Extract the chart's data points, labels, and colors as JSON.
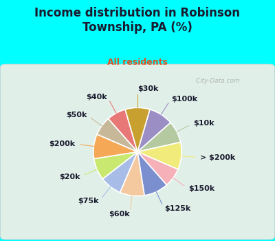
{
  "title": "Income distribution in Robinson\nTownship, PA (%)",
  "subtitle": "All residents",
  "bg_cyan": "#00FFFF",
  "chart_bg_top": "#f0f8f0",
  "chart_bg_bottom": "#c8ecd0",
  "labels": [
    "$100k",
    "$10k",
    "> $200k",
    "$150k",
    "$125k",
    "$60k",
    "$75k",
    "$20k",
    "$200k",
    "$50k",
    "$40k",
    "$30k"
  ],
  "sizes": [
    9,
    8,
    10,
    7,
    9,
    9,
    8,
    8,
    9,
    7,
    7,
    9
  ],
  "colors": [
    "#9b8ec4",
    "#b5c9a0",
    "#f0eb7a",
    "#f5b0b8",
    "#7b8fcf",
    "#f5c9a0",
    "#a8bce8",
    "#c8e870",
    "#f5a855",
    "#c8b89a",
    "#e87878",
    "#c8a030"
  ],
  "label_fontsize": 8,
  "title_fontsize": 12,
  "subtitle_fontsize": 9,
  "title_color": "#1a1a2e",
  "subtitle_color": "#e05020",
  "label_color": "#1a1a2e",
  "watermark": " City-Data.com",
  "watermark_color": "#aaaaaa"
}
